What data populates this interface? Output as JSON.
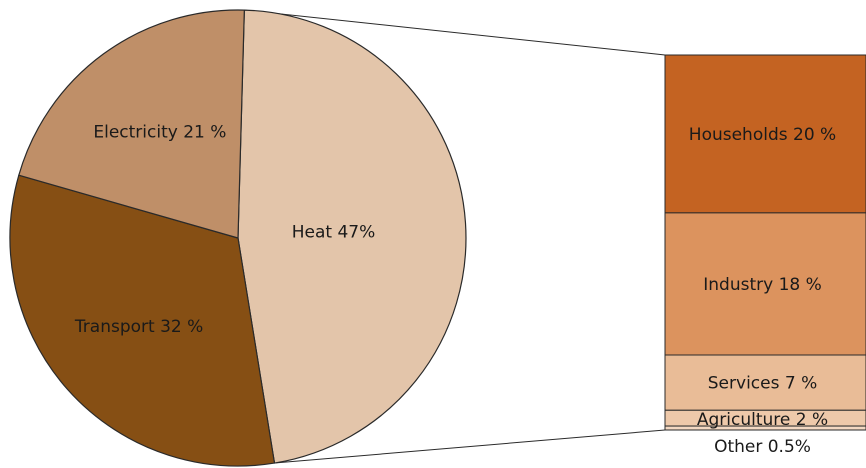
{
  "chart_data": [
    {
      "type": "pie",
      "title": "",
      "slices": [
        {
          "label": "Heat 47%",
          "value": 47,
          "color": "#E3C5AA"
        },
        {
          "label": "Transport 32 %",
          "value": 32,
          "color": "#864F14"
        },
        {
          "label": "Electricity 21 %",
          "value": 21,
          "color": "#BF8F68"
        }
      ],
      "exploded_slice": "Heat 47%"
    },
    {
      "type": "bar",
      "stacked": true,
      "title": "",
      "breakdown_of": "Heat 47%",
      "segments": [
        {
          "label": "Households 20 %",
          "value": 20,
          "color": "#C46322"
        },
        {
          "label": "Industry 18 %",
          "value": 18,
          "color": "#DC935E"
        },
        {
          "label": "Services 7 %",
          "value": 7,
          "color": "#E9BC97"
        },
        {
          "label": "Agriculture 2 %",
          "value": 2,
          "color": "#EEC9AA"
        },
        {
          "label": "Other 0.5%",
          "value": 0.5,
          "color": "#F3D8C2"
        }
      ]
    }
  ]
}
